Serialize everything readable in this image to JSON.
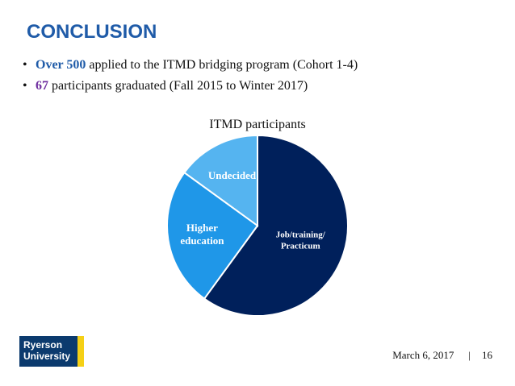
{
  "slide": {
    "title": "CONCLUSION",
    "bullets": [
      {
        "bullet": "•",
        "highlight": "Over 500",
        "rest": " applied to the ITMD bridging program (Cohort 1-4)"
      },
      {
        "bullet": "•",
        "highlight": "67",
        "rest": " participants graduated (Fall 2015 to Winter 2017)"
      }
    ],
    "colors": {
      "title": "#1f5ba8",
      "highlight_blue": "#1f5ba8",
      "highlight_purple": "#7030a0"
    }
  },
  "chart_data": {
    "type": "pie",
    "title": "ITMD  participants",
    "slices": [
      {
        "label": "Job/training/\nPracticum",
        "value": 60,
        "color": "#00205b"
      },
      {
        "label": "Higher\neducation",
        "value": 25,
        "color": "#1f97e8"
      },
      {
        "label": "Undecided",
        "value": 15,
        "color": "#55b4f0"
      }
    ],
    "start_angle_deg": 0,
    "direction": "clockwise",
    "legend": "none",
    "label_color": "#ffffff"
  },
  "logo": {
    "line1": "Ryerson",
    "line2": "University",
    "colors": {
      "bg": "#0b3a6e",
      "bar": "#f5d016"
    }
  },
  "footer": {
    "date": "March 6, 2017",
    "separator": "|",
    "page_number": "16"
  }
}
